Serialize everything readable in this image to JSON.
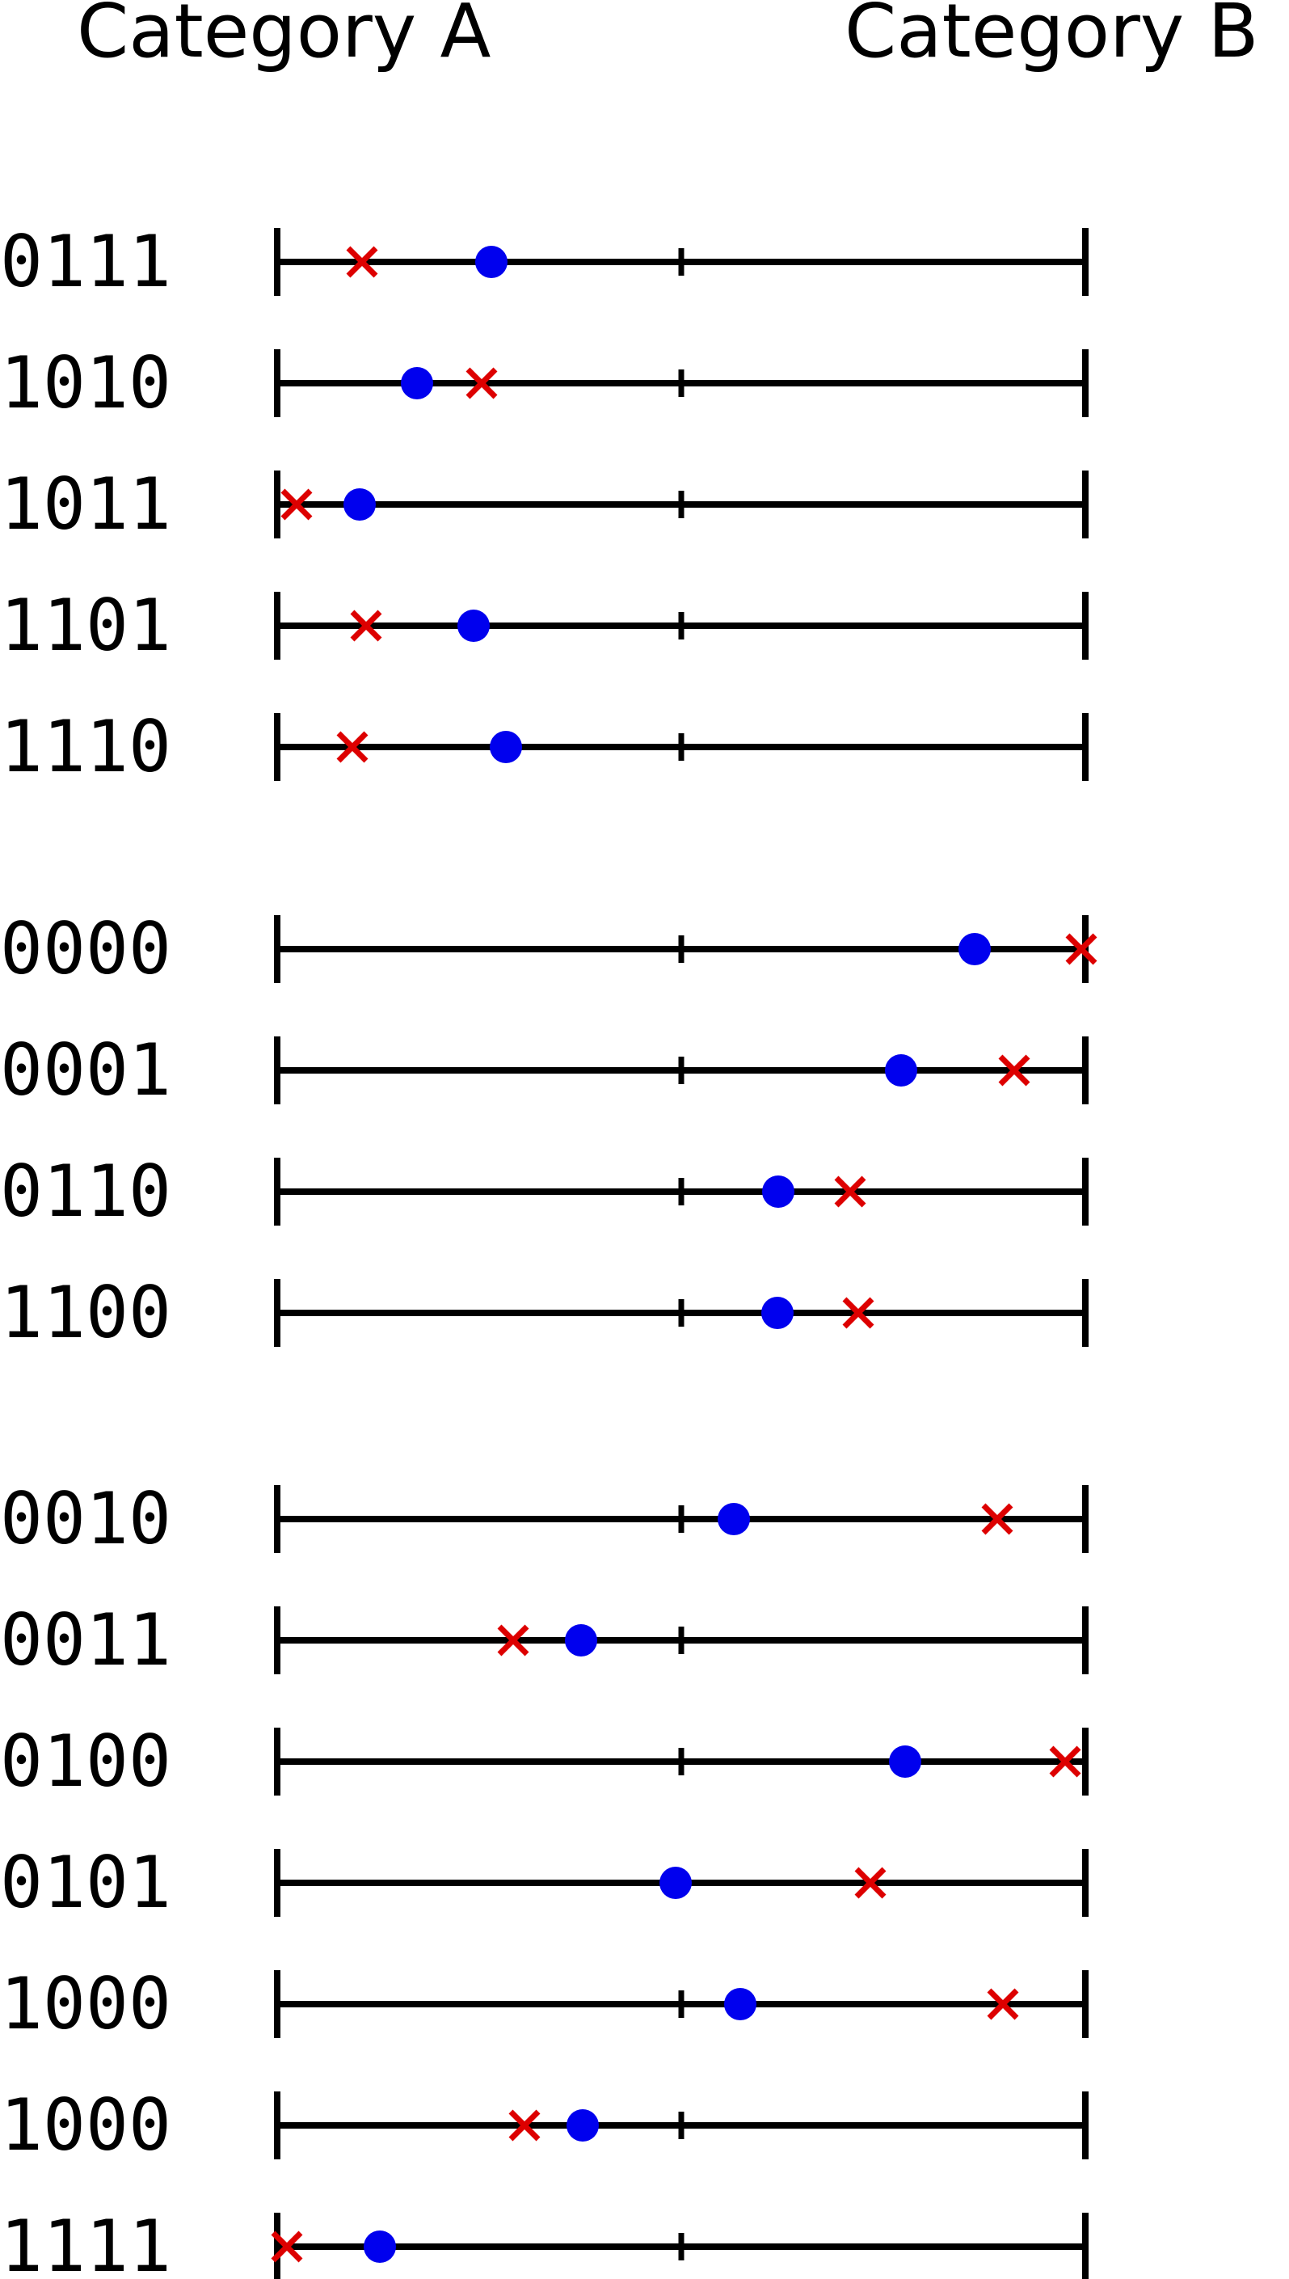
{
  "chart_data": {
    "type": "scatter",
    "title": "",
    "left_label": "Category A",
    "right_label": "Category B",
    "xlim": [
      0,
      1
    ],
    "ticks": [
      0,
      0.5,
      1
    ],
    "grid": false,
    "colors": {
      "axis": "#000000",
      "dot": "#0000ee",
      "cross": "#dd0000"
    },
    "groups": [
      {
        "rows": [
          {
            "label": "0111",
            "dot": 0.265,
            "cross": 0.105
          },
          {
            "label": "1010",
            "dot": 0.173,
            "cross": 0.253
          },
          {
            "label": "1011",
            "dot": 0.102,
            "cross": 0.024
          },
          {
            "label": "1101",
            "dot": 0.243,
            "cross": 0.11
          },
          {
            "label": "1110",
            "dot": 0.283,
            "cross": 0.093
          }
        ]
      },
      {
        "rows": [
          {
            "label": "0000",
            "dot": 0.863,
            "cross": 0.995
          },
          {
            "label": "0001",
            "dot": 0.772,
            "cross": 0.912
          },
          {
            "label": "0110",
            "dot": 0.62,
            "cross": 0.709
          },
          {
            "label": "1100",
            "dot": 0.619,
            "cross": 0.719
          }
        ]
      },
      {
        "rows": [
          {
            "label": "0010",
            "dot": 0.565,
            "cross": 0.891
          },
          {
            "label": "0011",
            "dot": 0.376,
            "cross": 0.292
          },
          {
            "label": "0100",
            "dot": 0.777,
            "cross": 0.975
          },
          {
            "label": "0101",
            "dot": 0.493,
            "cross": 0.734
          },
          {
            "label": "1000",
            "dot": 0.573,
            "cross": 0.898
          },
          {
            "label": "1000",
            "dot": 0.378,
            "cross": 0.306
          },
          {
            "label": "1111",
            "dot": 0.127,
            "cross": 0.012
          }
        ]
      }
    ]
  }
}
